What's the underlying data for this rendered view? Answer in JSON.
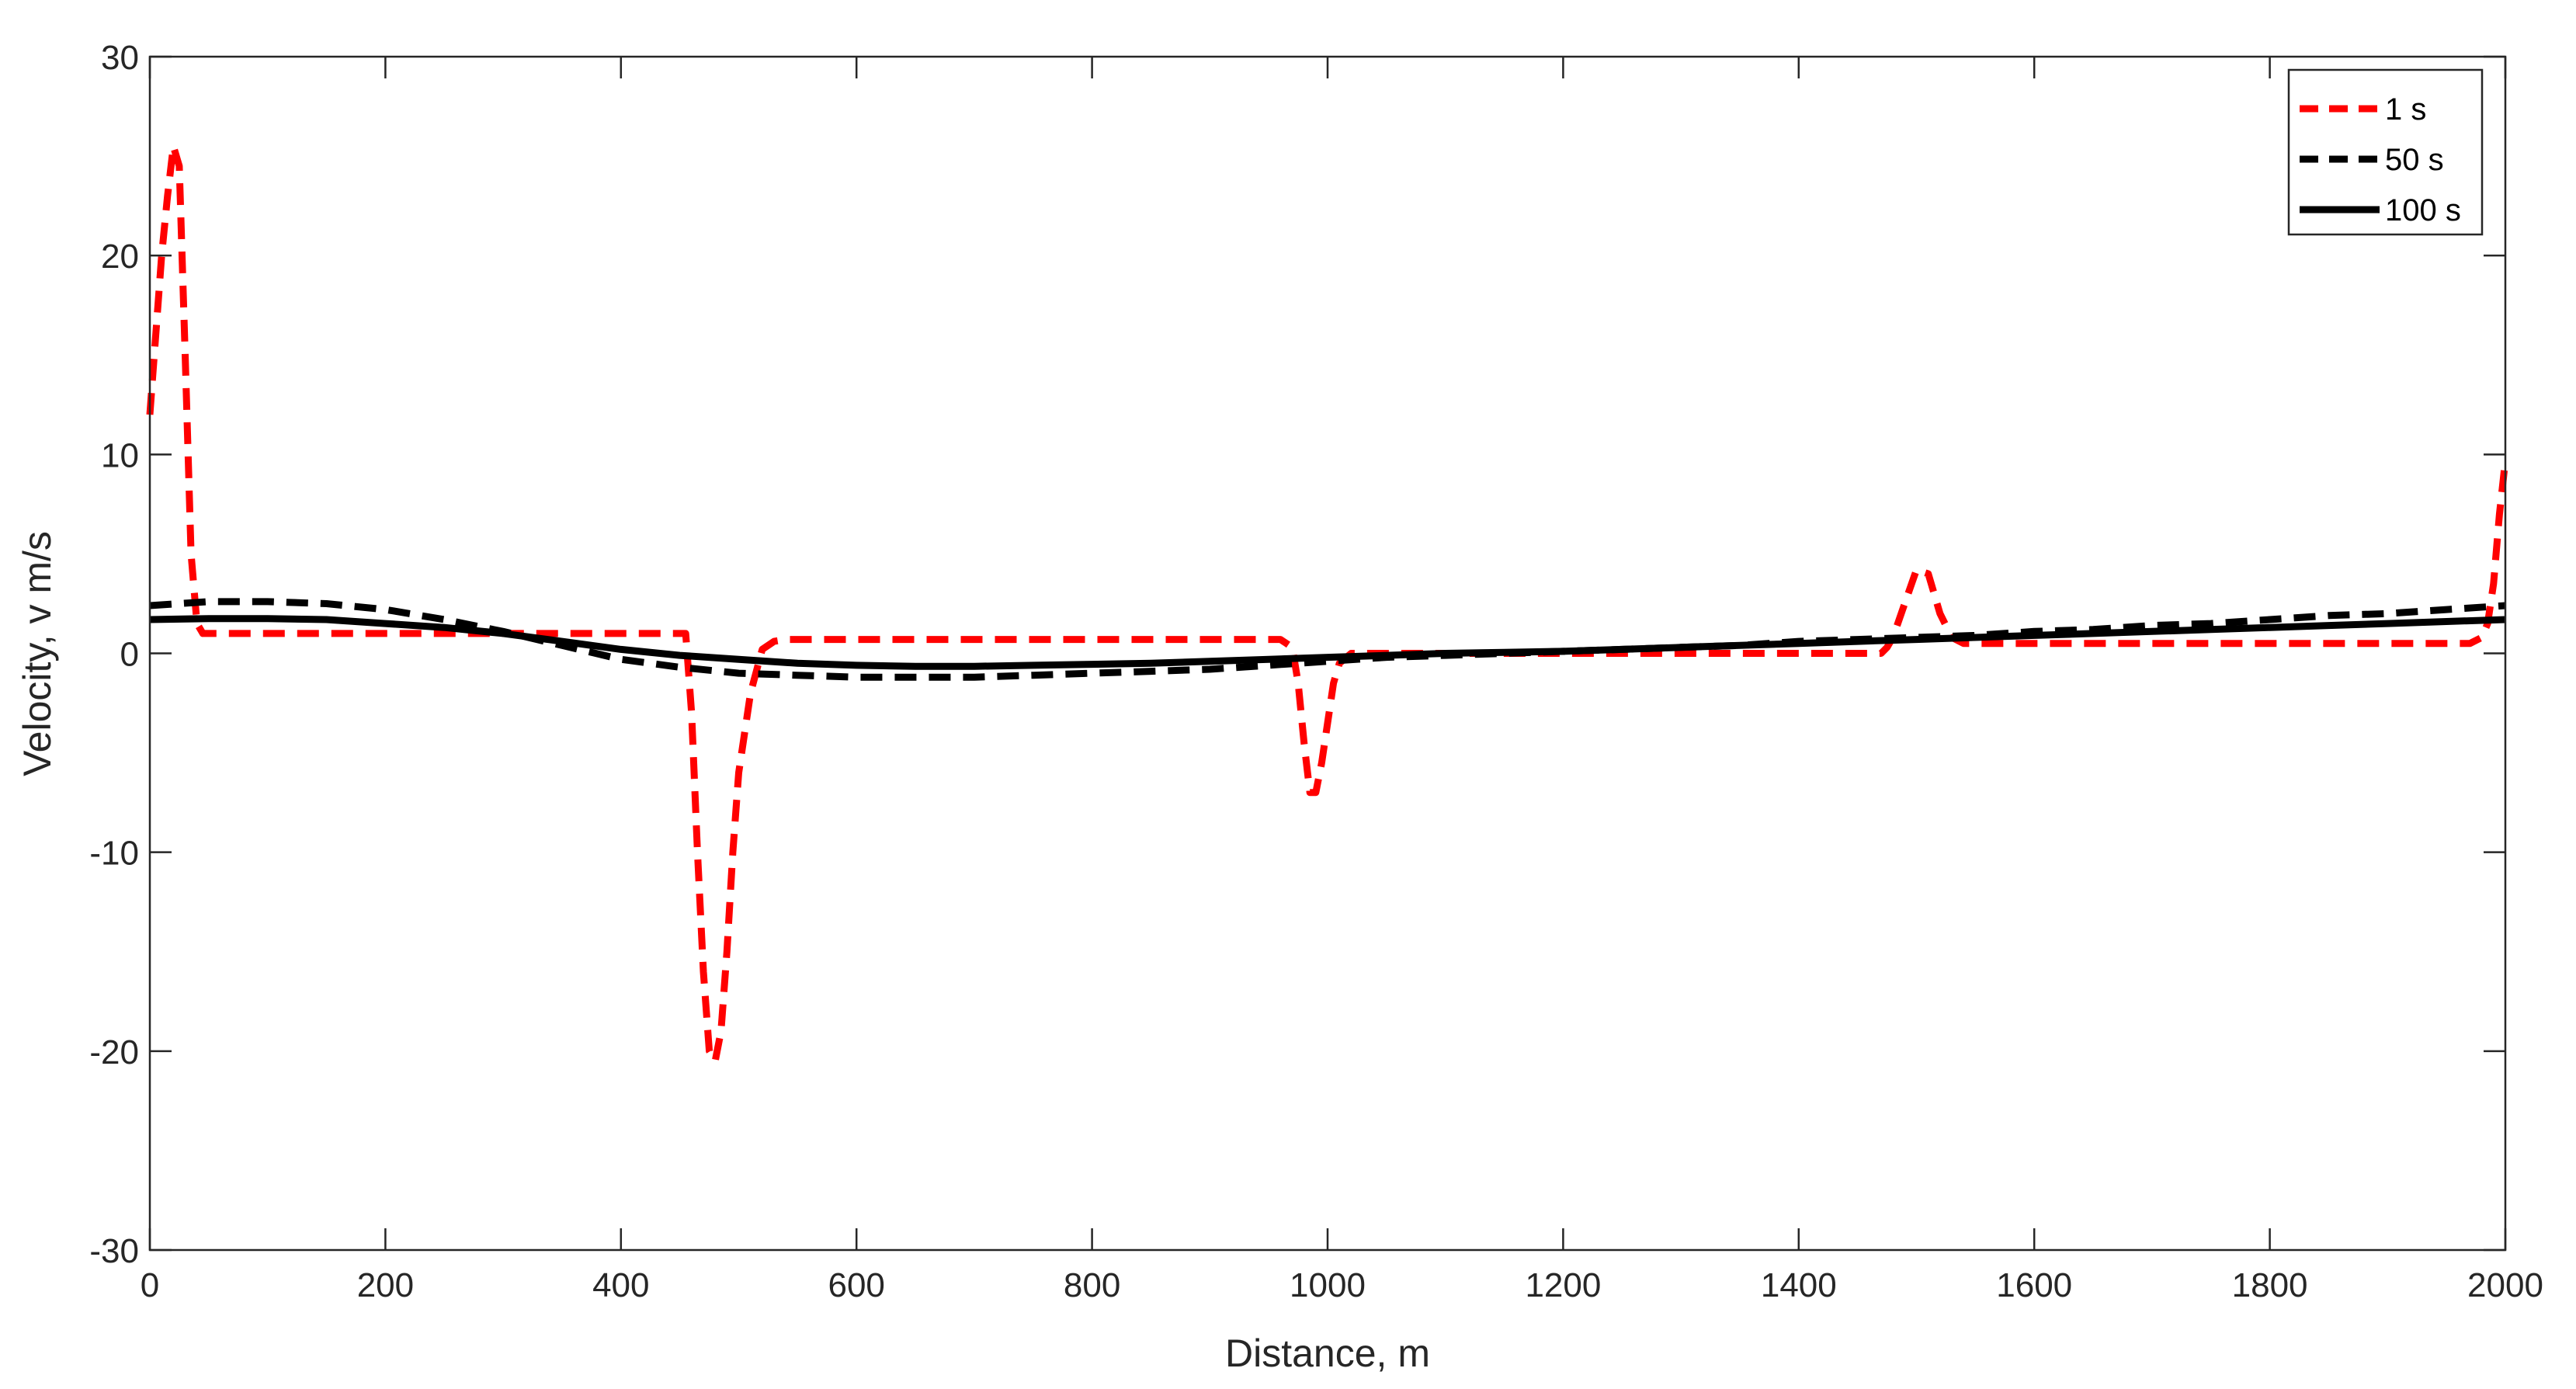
{
  "chart_data": {
    "type": "line",
    "xlabel": "Distance, m",
    "ylabel": "Velocity, v m/s",
    "xlim": [
      0,
      2000
    ],
    "ylim": [
      -30,
      30
    ],
    "xticks": [
      0,
      200,
      400,
      600,
      800,
      1000,
      1200,
      1400,
      1600,
      1800,
      2000
    ],
    "yticks": [
      -30,
      -20,
      -10,
      0,
      10,
      20,
      30
    ],
    "xtick_labels": [
      "0",
      "200",
      "400",
      "600",
      "800",
      "1000",
      "1200",
      "1400",
      "1600",
      "1800",
      "2000"
    ],
    "ytick_labels": [
      "-30",
      "-20",
      "-10",
      "0",
      "10",
      "20",
      "30"
    ],
    "grid": false,
    "legend_position": "top-right",
    "series": [
      {
        "name": "1 s",
        "color": "#ff0000",
        "style": "dashed",
        "x": [
          0,
          5,
          10,
          15,
          20,
          25,
          30,
          35,
          40,
          45,
          50,
          100,
          200,
          300,
          400,
          455,
          460,
          465,
          470,
          475,
          480,
          485,
          490,
          495,
          500,
          510,
          520,
          530,
          540,
          550,
          600,
          700,
          800,
          900,
          960,
          970,
          975,
          980,
          985,
          990,
          995,
          1000,
          1005,
          1010,
          1020,
          1030,
          1040,
          1100,
          1200,
          1300,
          1400,
          1470,
          1475,
          1480,
          1490,
          1500,
          1510,
          1520,
          1530,
          1540,
          1550,
          1600,
          1700,
          1800,
          1900,
          1970,
          1980,
          1985,
          1990,
          1995,
          2000
        ],
        "y": [
          12,
          16,
          20,
          23,
          25.5,
          24.5,
          15,
          5,
          1.5,
          1,
          1,
          1,
          1,
          1,
          1,
          1,
          -3,
          -10,
          -16,
          -20,
          -20.5,
          -19,
          -15,
          -10,
          -6,
          -2,
          0.2,
          0.6,
          0.7,
          0.7,
          0.7,
          0.7,
          0.7,
          0.7,
          0.7,
          0.3,
          -1.5,
          -4.5,
          -7,
          -7,
          -5.5,
          -3.5,
          -1.5,
          -0.5,
          0,
          0,
          0,
          0,
          0,
          0,
          0,
          0,
          0.3,
          0.8,
          2.5,
          4.2,
          4,
          2,
          0.8,
          0.5,
          0.5,
          0.5,
          0.5,
          0.5,
          0.5,
          0.5,
          0.8,
          1.5,
          3.5,
          7,
          9.7
        ]
      },
      {
        "name": "50 s",
        "color": "#000000",
        "style": "dashed",
        "x": [
          0,
          50,
          100,
          150,
          200,
          250,
          300,
          350,
          400,
          450,
          500,
          550,
          600,
          650,
          700,
          750,
          800,
          850,
          900,
          950,
          1000,
          1050,
          1100,
          1150,
          1200,
          1250,
          1300,
          1350,
          1400,
          1450,
          1500,
          1550,
          1600,
          1650,
          1700,
          1750,
          1800,
          1850,
          1900,
          1950,
          2000
        ],
        "y": [
          2.4,
          2.6,
          2.6,
          2.5,
          2.2,
          1.7,
          1.1,
          0.4,
          -0.3,
          -0.7,
          -1.0,
          -1.1,
          -1.2,
          -1.2,
          -1.2,
          -1.1,
          -1.0,
          -0.9,
          -0.8,
          -0.6,
          -0.4,
          -0.2,
          -0.1,
          0.0,
          0.1,
          0.2,
          0.3,
          0.4,
          0.6,
          0.7,
          0.8,
          0.9,
          1.1,
          1.2,
          1.4,
          1.5,
          1.7,
          1.9,
          2.0,
          2.2,
          2.4
        ]
      },
      {
        "name": "100 s",
        "color": "#000000",
        "style": "solid",
        "x": [
          0,
          50,
          100,
          150,
          200,
          250,
          300,
          350,
          400,
          450,
          500,
          550,
          600,
          650,
          700,
          750,
          800,
          850,
          900,
          950,
          1000,
          1050,
          1100,
          1150,
          1200,
          1250,
          1300,
          1350,
          1400,
          1450,
          1500,
          1550,
          1600,
          1650,
          1700,
          1750,
          1800,
          1850,
          1900,
          1950,
          2000
        ],
        "y": [
          1.7,
          1.75,
          1.75,
          1.7,
          1.5,
          1.3,
          1.0,
          0.6,
          0.2,
          -0.1,
          -0.3,
          -0.5,
          -0.6,
          -0.65,
          -0.65,
          -0.6,
          -0.55,
          -0.5,
          -0.4,
          -0.3,
          -0.2,
          -0.1,
          0.0,
          0.05,
          0.1,
          0.2,
          0.3,
          0.4,
          0.5,
          0.6,
          0.7,
          0.8,
          0.9,
          1.0,
          1.1,
          1.2,
          1.3,
          1.4,
          1.5,
          1.6,
          1.7
        ]
      }
    ]
  }
}
